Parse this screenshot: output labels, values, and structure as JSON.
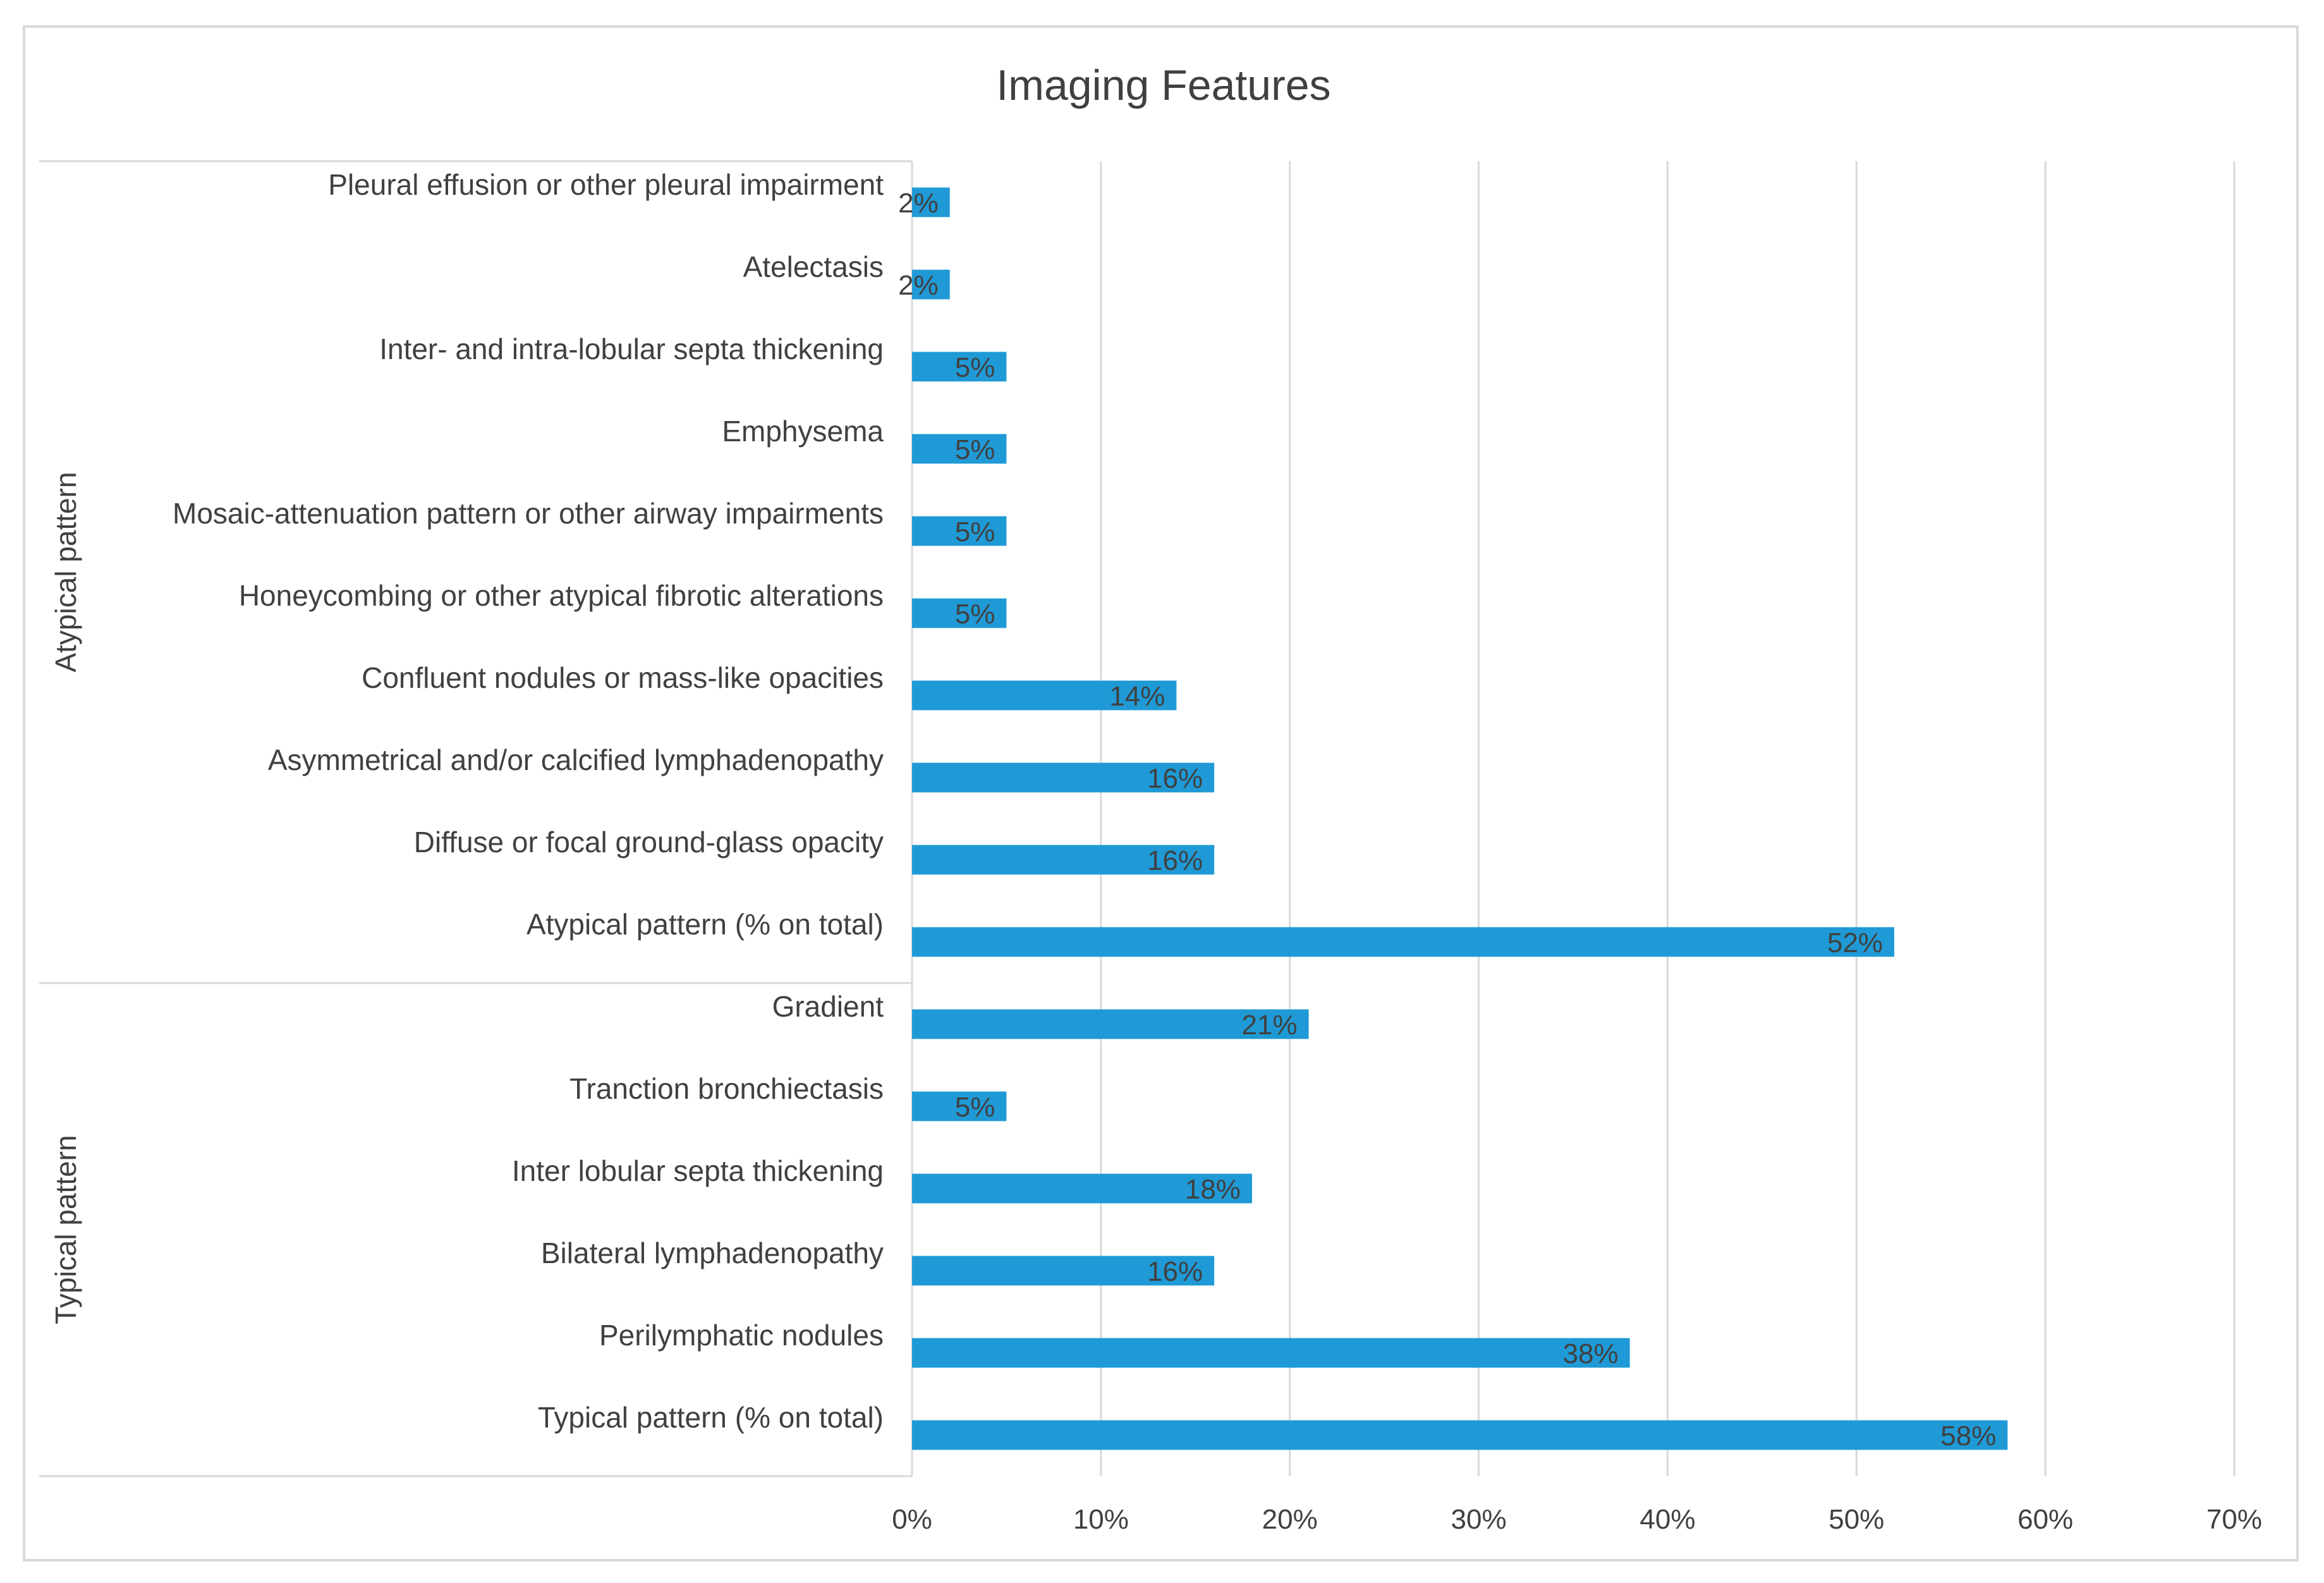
{
  "chart_data": {
    "type": "bar",
    "orientation": "horizontal",
    "title": "Imaging Features",
    "xlim": [
      0,
      0.7
    ],
    "x_ticks": [
      0,
      0.1,
      0.2,
      0.3,
      0.4,
      0.5,
      0.6,
      0.7
    ],
    "x_tick_labels": [
      "0%",
      "10%",
      "20%",
      "30%",
      "40%",
      "50%",
      "60%",
      "70%"
    ],
    "grid": "vertical",
    "legend": "none",
    "bar_color": "#1f9ad6",
    "groups": [
      {
        "name": "Atypical pattern",
        "categories": [
          "Pleural effusion or other pleural impairment",
          "Atelectasis",
          "Inter- and intra-lobular septa thickening",
          "Emphysema",
          "Mosaic-attenuation pattern or other airway impairments",
          "Honeycombing or other atypical fibrotic alterations",
          "Confluent nodules or mass-like opacities",
          "Asymmetrical and/or calcified lymphadenopathy",
          "Diffuse or focal ground-glass opacity",
          "Atypical pattern (% on total)"
        ],
        "values": [
          0.02,
          0.02,
          0.05,
          0.05,
          0.05,
          0.05,
          0.14,
          0.16,
          0.16,
          0.52
        ],
        "labels": [
          "2%",
          "2%",
          "5%",
          "5%",
          "5%",
          "5%",
          "14%",
          "16%",
          "16%",
          "52%"
        ]
      },
      {
        "name": "Typical pattern",
        "categories": [
          "Gradient",
          "Tranction bronchiectasis",
          "Inter lobular septa thickening",
          "Bilateral lymphadenopathy",
          "Perilymphatic nodules",
          "Typical pattern (% on total)"
        ],
        "values": [
          0.21,
          0.05,
          0.18,
          0.16,
          0.38,
          0.58
        ],
        "labels": [
          "21%",
          "5%",
          "18%",
          "16%",
          "38%",
          "58%"
        ]
      }
    ]
  }
}
